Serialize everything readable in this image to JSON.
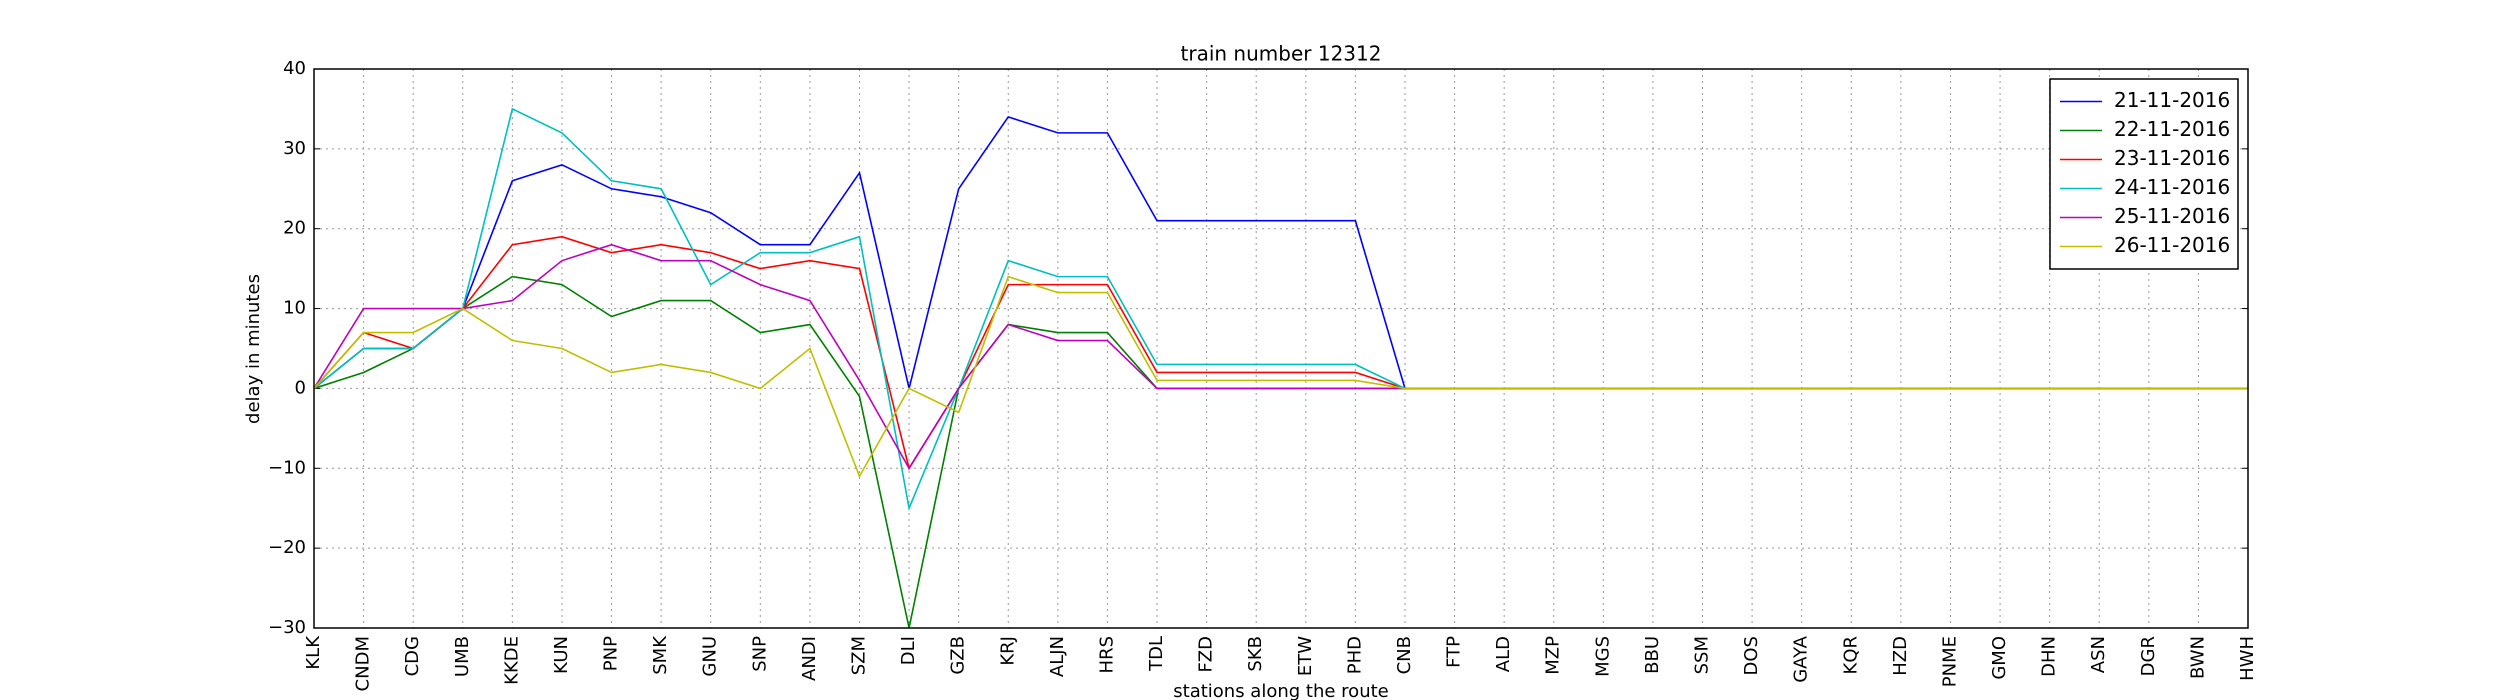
{
  "chart_data": {
    "type": "line",
    "title": "train number 12312",
    "x_label": "stations along the route",
    "y_label": "delay in minutes",
    "categories": [
      "KLK",
      "CNDM",
      "CDG",
      "UMB",
      "KKDE",
      "KUN",
      "PNP",
      "SMK",
      "GNU",
      "SNP",
      "ANDI",
      "SZM",
      "DLI",
      "GZB",
      "KRJ",
      "ALJN",
      "HRS",
      "TDL",
      "FZD",
      "SKB",
      "ETW",
      "PHD",
      "CNB",
      "FTP",
      "ALD",
      "MZP",
      "MGS",
      "BBU",
      "SSM",
      "DOS",
      "GAYA",
      "KQR",
      "HZD",
      "PNME",
      "GMO",
      "DHN",
      "ASN",
      "DGR",
      "BWN",
      "HWH"
    ],
    "series": [
      {
        "name": "21-11-2016",
        "color": "#0000ff",
        "values": [
          0,
          5,
          5,
          10,
          26,
          28,
          25,
          24,
          22,
          18,
          18,
          27,
          0,
          25,
          34,
          32,
          32,
          21,
          21,
          21,
          21,
          21,
          0,
          0,
          0,
          0,
          0,
          0,
          0,
          0,
          0,
          0,
          0,
          0,
          0,
          0,
          0,
          0,
          0,
          0
        ]
      },
      {
        "name": "22-11-2016",
        "color": "#008000",
        "values": [
          0,
          2,
          5,
          10,
          14,
          13,
          9,
          11,
          11,
          7,
          8,
          -1,
          -30,
          0,
          8,
          7,
          7,
          0,
          0,
          0,
          0,
          0,
          0,
          0,
          0,
          0,
          0,
          0,
          0,
          0,
          0,
          0,
          0,
          0,
          0,
          0,
          0,
          0,
          0,
          0
        ]
      },
      {
        "name": "23-11-2016",
        "color": "#ff0000",
        "values": [
          0,
          7,
          5,
          10,
          18,
          19,
          17,
          18,
          17,
          15,
          16,
          15,
          -10,
          0,
          13,
          13,
          13,
          2,
          2,
          2,
          2,
          2,
          0,
          0,
          0,
          0,
          0,
          0,
          0,
          0,
          0,
          0,
          0,
          0,
          0,
          0,
          0,
          0,
          0,
          0
        ]
      },
      {
        "name": "24-11-2016",
        "color": "#00bfbf",
        "values": [
          0,
          5,
          5,
          10,
          35,
          32,
          26,
          25,
          13,
          17,
          17,
          19,
          -15,
          0,
          16,
          14,
          14,
          3,
          3,
          3,
          3,
          3,
          0,
          0,
          0,
          0,
          0,
          0,
          0,
          0,
          0,
          0,
          0,
          0,
          0,
          0,
          0,
          0,
          0,
          0
        ]
      },
      {
        "name": "25-11-2016",
        "color": "#bf00bf",
        "values": [
          0,
          10,
          10,
          10,
          11,
          16,
          18,
          16,
          16,
          13,
          11,
          1,
          -10,
          0,
          8,
          6,
          6,
          0,
          0,
          0,
          0,
          0,
          0,
          0,
          0,
          0,
          0,
          0,
          0,
          0,
          0,
          0,
          0,
          0,
          0,
          0,
          0,
          0,
          0,
          0
        ]
      },
      {
        "name": "26-11-2016",
        "color": "#bfbf00",
        "values": [
          0,
          7,
          7,
          10,
          6,
          5,
          2,
          3,
          2,
          0,
          5,
          -11,
          0,
          -3,
          14,
          12,
          12,
          1,
          1,
          1,
          1,
          1,
          0,
          0,
          0,
          0,
          0,
          0,
          0,
          0,
          0,
          0,
          0,
          0,
          0,
          0,
          0,
          0,
          0,
          0
        ]
      }
    ],
    "ylim": [
      -30,
      40
    ],
    "yticks": [
      {
        "value": -30,
        "label": "−30"
      },
      {
        "value": -20,
        "label": "−20"
      },
      {
        "value": -10,
        "label": "−10"
      },
      0,
      10,
      20,
      30,
      40
    ],
    "grid": true,
    "legend": "upper right"
  }
}
